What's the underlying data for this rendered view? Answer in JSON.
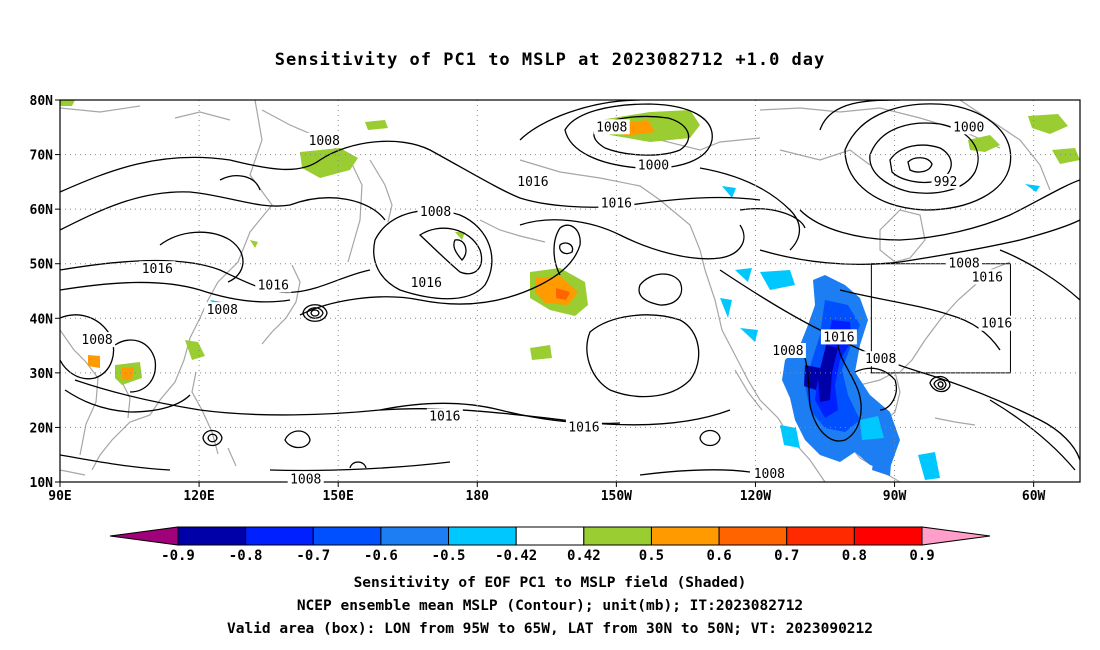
{
  "title": "Sensitivity of PC1 to MSLP at 2023082712 +1.0 day",
  "captions": [
    "Sensitivity of EOF PC1 to MSLP field (Shaded)",
    "NCEP ensemble mean MSLP (Contour); unit(mb); IT:2023082712",
    "Valid area (box): LON from 95W to 65W, LAT from 30N to 50N; VT: 2023090212"
  ],
  "map": {
    "lon_range": [
      90,
      310
    ],
    "lat_range": [
      10,
      80
    ],
    "lat_ticks": [
      {
        "value": 80,
        "label": "80N"
      },
      {
        "value": 70,
        "label": "70N"
      },
      {
        "value": 60,
        "label": "60N"
      },
      {
        "value": 50,
        "label": "50N"
      },
      {
        "value": 40,
        "label": "40N"
      },
      {
        "value": 30,
        "label": "30N"
      },
      {
        "value": 20,
        "label": "20N"
      },
      {
        "value": 10,
        "label": "10N"
      }
    ],
    "lon_ticks": [
      {
        "value": 90,
        "label": "90E"
      },
      {
        "value": 120,
        "label": "120E"
      },
      {
        "value": 150,
        "label": "150E"
      },
      {
        "value": 180,
        "label": "180"
      },
      {
        "value": 210,
        "label": "150W"
      },
      {
        "value": 240,
        "label": "120W"
      },
      {
        "value": 270,
        "label": "90W"
      },
      {
        "value": 300,
        "label": "60W"
      }
    ],
    "valid_box": {
      "lon": [
        265,
        295
      ],
      "lat": [
        30,
        50
      ]
    }
  },
  "colorbar": {
    "levels": [
      "-0.9",
      "-0.8",
      "-0.7",
      "-0.6",
      "-0.5",
      "-0.42",
      "0.42",
      "0.5",
      "0.6",
      "0.7",
      "0.8",
      "0.9"
    ],
    "colors": [
      "#a0007a",
      "#0000a8",
      "#0020ff",
      "#0050ff",
      "#1c7ef2",
      "#00c8ff",
      "#ffffff",
      "#9acd32",
      "#ff9a00",
      "#ff6400",
      "#ff2a00",
      "#ff0000",
      "#ff9ec8"
    ]
  },
  "contour_labels": [
    {
      "text": "1008",
      "lon": 147,
      "lat": 72.5
    },
    {
      "text": "1008",
      "lon": 209,
      "lat": 75
    },
    {
      "text": "1000",
      "lon": 218,
      "lat": 68
    },
    {
      "text": "1016",
      "lon": 192,
      "lat": 65
    },
    {
      "text": "1008",
      "lon": 171,
      "lat": 59.5
    },
    {
      "text": "1016",
      "lon": 210,
      "lat": 61
    },
    {
      "text": "1000",
      "lon": 286,
      "lat": 75
    },
    {
      "text": "992",
      "lon": 281,
      "lat": 65
    },
    {
      "text": "1008",
      "lon": 285,
      "lat": 50
    },
    {
      "text": "1016",
      "lon": 290,
      "lat": 47.5
    },
    {
      "text": "1016",
      "lon": 111,
      "lat": 49
    },
    {
      "text": "1016",
      "lon": 136,
      "lat": 46
    },
    {
      "text": "1016",
      "lon": 169,
      "lat": 46.5
    },
    {
      "text": "1008",
      "lon": 125,
      "lat": 41.5
    },
    {
      "text": "1008",
      "lon": 98,
      "lat": 36
    },
    {
      "text": "1016",
      "lon": 292,
      "lat": 39
    },
    {
      "text": "1016",
      "lon": 258,
      "lat": 36.5
    },
    {
      "text": "1008",
      "lon": 247,
      "lat": 34
    },
    {
      "text": "1008",
      "lon": 267,
      "lat": 32.5
    },
    {
      "text": "1016",
      "lon": 173,
      "lat": 22
    },
    {
      "text": "1016",
      "lon": 203,
      "lat": 20
    },
    {
      "text": "1008",
      "lon": 243,
      "lat": 11.5
    },
    {
      "text": "1008",
      "lon": 143,
      "lat": 10.5
    }
  ]
}
